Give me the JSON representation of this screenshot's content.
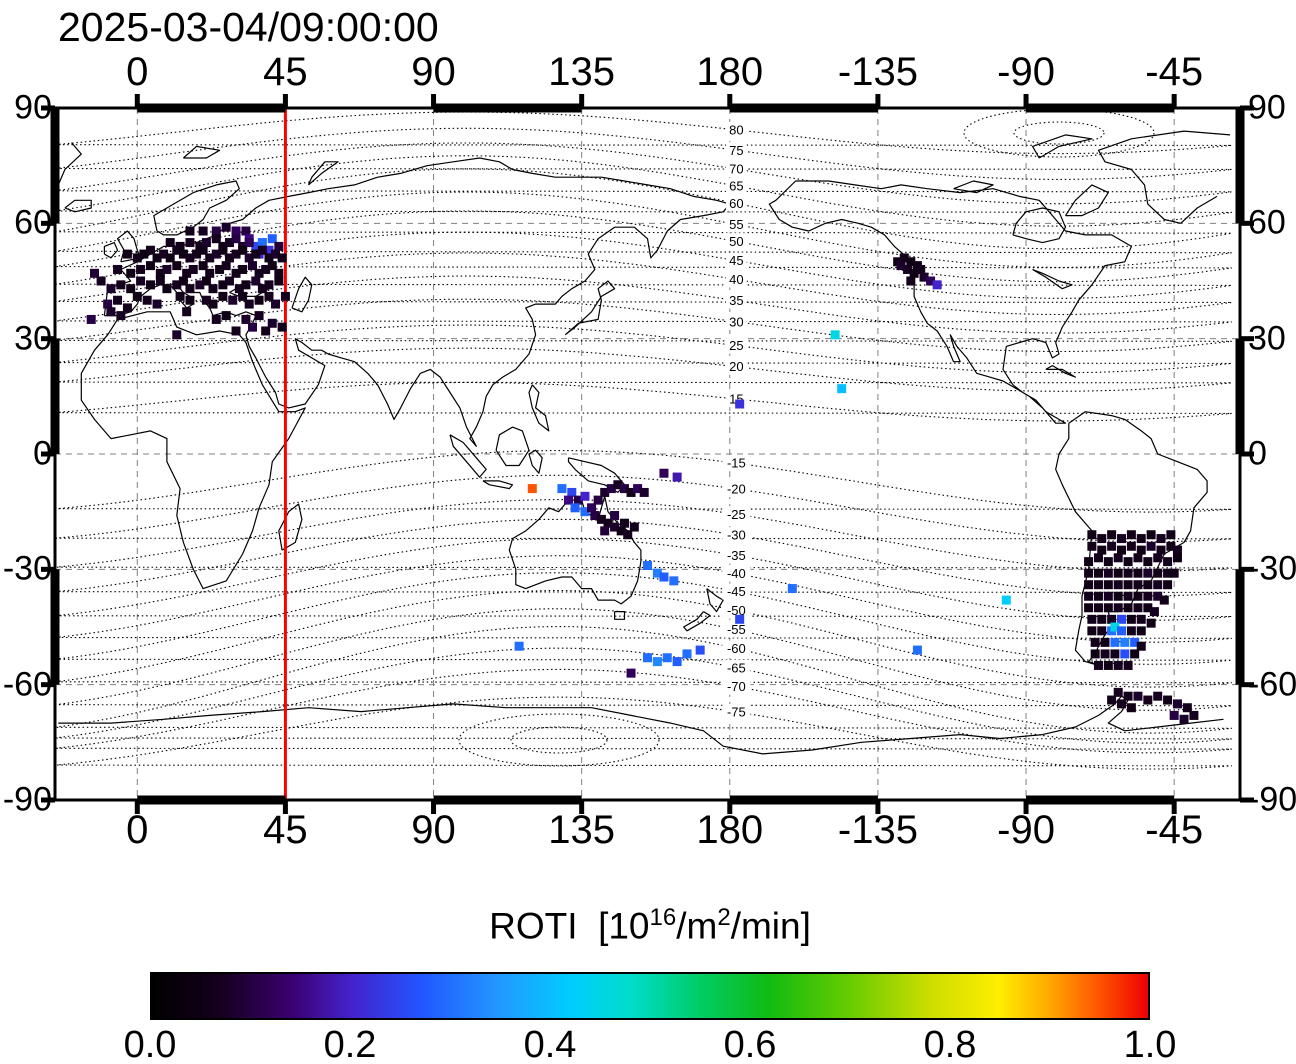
{
  "title": "2025-03-04/09:00:00",
  "axes": {
    "lon_ticks": [
      "0",
      "45",
      "90",
      "135",
      "180",
      "-135",
      "-90",
      "-45"
    ],
    "lat_ticks": [
      "90",
      "60",
      "30",
      "0",
      "-30",
      "-60",
      "-90"
    ]
  },
  "colorbar": {
    "title_prefix": "ROTI  [10",
    "title_sup1": "16",
    "title_mid": "/m",
    "title_sup2": "2",
    "title_suffix": "/min]",
    "tick_labels": [
      "0.0",
      "0.2",
      "0.4",
      "0.6",
      "0.8",
      "1.0"
    ],
    "stops": [
      [
        0,
        "#000000"
      ],
      [
        0.07,
        "#16001f"
      ],
      [
        0.14,
        "#3a0070"
      ],
      [
        0.2,
        "#4422cc"
      ],
      [
        0.27,
        "#2255ff"
      ],
      [
        0.35,
        "#2299ff"
      ],
      [
        0.42,
        "#00ccff"
      ],
      [
        0.48,
        "#00ddcc"
      ],
      [
        0.55,
        "#00cc66"
      ],
      [
        0.62,
        "#11bb11"
      ],
      [
        0.7,
        "#66cc00"
      ],
      [
        0.78,
        "#ccdd00"
      ],
      [
        0.85,
        "#ffee00"
      ],
      [
        0.9,
        "#ffaa00"
      ],
      [
        0.95,
        "#ff5500"
      ],
      [
        1,
        "#ee0000"
      ]
    ]
  },
  "chart_data": {
    "type": "scatter",
    "title": "2025-03-04/09:00:00",
    "projection": "equirectangular, lon -25..335, lat -90..90",
    "red_meridian_lon": 45,
    "grid": {
      "lon_step": 45,
      "lat_step": 30
    },
    "colorbar_range": [
      0,
      1
    ],
    "contour_labels_lon": 182,
    "contours": {
      "north": [
        [
          80,
          84.3
        ],
        [
          75,
          79.0
        ],
        [
          70,
          74.1
        ],
        [
          65,
          69.7
        ],
        [
          60,
          65.2
        ],
        [
          55,
          59.7
        ],
        [
          50,
          55.3
        ],
        [
          45,
          50.3
        ],
        [
          40,
          45.4
        ],
        [
          35,
          39.9
        ],
        [
          30,
          34.4
        ],
        [
          25,
          28.2
        ],
        [
          20,
          22.7
        ],
        [
          15,
          14.3
        ]
      ],
      "south": [
        [
          -15,
          -2.4
        ],
        [
          -20,
          -9.1
        ],
        [
          -25,
          -15.7
        ],
        [
          -30,
          -21.1
        ],
        [
          -35,
          -26.4
        ],
        [
          -40,
          -31.1
        ],
        [
          -45,
          -35.8
        ],
        [
          -50,
          -40.7
        ],
        [
          -55,
          -45.7
        ],
        [
          -60,
          -50.6
        ],
        [
          -65,
          -55.6
        ],
        [
          -70,
          -60.5
        ],
        [
          -75,
          -67.1
        ]
      ]
    },
    "points": [
      [
        24,
        58,
        0.1
      ],
      [
        27,
        59,
        0.08
      ],
      [
        30,
        58,
        0.12
      ],
      [
        33,
        58,
        0.1
      ],
      [
        20,
        58,
        0.07
      ],
      [
        16,
        58,
        0.06
      ],
      [
        36,
        54,
        0.25
      ],
      [
        38,
        55,
        0.3
      ],
      [
        40,
        53,
        0.22
      ],
      [
        41,
        56,
        0.28
      ],
      [
        37,
        52,
        0.2
      ],
      [
        34,
        56,
        0.15
      ],
      [
        10,
        55,
        0.06
      ],
      [
        13,
        54,
        0.05
      ],
      [
        16,
        55,
        0.07
      ],
      [
        19,
        54,
        0.05
      ],
      [
        21,
        55,
        0.08
      ],
      [
        24,
        56,
        0.06
      ],
      [
        26,
        54,
        0.05
      ],
      [
        28,
        55,
        0.07
      ],
      [
        30,
        56,
        0.1
      ],
      [
        32,
        54,
        0.08
      ],
      [
        34,
        55,
        0.12
      ],
      [
        43,
        54,
        0.09
      ],
      [
        -3,
        52,
        0.05
      ],
      [
        0,
        51,
        0.06
      ],
      [
        2,
        52,
        0.04
      ],
      [
        4,
        53,
        0.06
      ],
      [
        6,
        51,
        0.05
      ],
      [
        8,
        52,
        0.07
      ],
      [
        10,
        51,
        0.05
      ],
      [
        12,
        53,
        0.06
      ],
      [
        14,
        52,
        0.05
      ],
      [
        16,
        51,
        0.07
      ],
      [
        18,
        52,
        0.06
      ],
      [
        20,
        53,
        0.05
      ],
      [
        22,
        51,
        0.06
      ],
      [
        24,
        52,
        0.08
      ],
      [
        26,
        53,
        0.05
      ],
      [
        28,
        51,
        0.06
      ],
      [
        30,
        52,
        0.07
      ],
      [
        32,
        53,
        0.05
      ],
      [
        34,
        51,
        0.08
      ],
      [
        36,
        52,
        0.06
      ],
      [
        38,
        53,
        0.07
      ],
      [
        40,
        51,
        0.05
      ],
      [
        42,
        52,
        0.08
      ],
      [
        44,
        51,
        0.06
      ],
      [
        -6,
        48,
        0.07
      ],
      [
        -2,
        47,
        0.05
      ],
      [
        1,
        48,
        0.06
      ],
      [
        4,
        49,
        0.05
      ],
      [
        7,
        47,
        0.06
      ],
      [
        9,
        48,
        0.08
      ],
      [
        12,
        49,
        0.05
      ],
      [
        15,
        47,
        0.06
      ],
      [
        17,
        48,
        0.07
      ],
      [
        20,
        49,
        0.05
      ],
      [
        22,
        47,
        0.06
      ],
      [
        25,
        48,
        0.05
      ],
      [
        27,
        49,
        0.07
      ],
      [
        30,
        47,
        0.06
      ],
      [
        32,
        48,
        0.05
      ],
      [
        35,
        49,
        0.08
      ],
      [
        37,
        47,
        0.06
      ],
      [
        39,
        48,
        0.07
      ],
      [
        41,
        49,
        0.05
      ],
      [
        43,
        47,
        0.06
      ],
      [
        -13,
        47,
        0.09
      ],
      [
        -11,
        45,
        0.07
      ],
      [
        -8,
        43,
        0.08
      ],
      [
        -5,
        44,
        0.06
      ],
      [
        -2,
        43,
        0.05
      ],
      [
        1,
        45,
        0.07
      ],
      [
        4,
        44,
        0.05
      ],
      [
        7,
        45,
        0.06
      ],
      [
        9,
        43,
        0.05
      ],
      [
        12,
        44,
        0.07
      ],
      [
        14,
        45,
        0.05
      ],
      [
        16,
        43,
        0.06
      ],
      [
        19,
        44,
        0.08
      ],
      [
        21,
        45,
        0.05
      ],
      [
        23,
        43,
        0.06
      ],
      [
        26,
        44,
        0.05
      ],
      [
        28,
        45,
        0.07
      ],
      [
        31,
        43,
        0.06
      ],
      [
        33,
        44,
        0.05
      ],
      [
        36,
        45,
        0.08
      ],
      [
        38,
        43,
        0.06
      ],
      [
        40,
        44,
        0.07
      ],
      [
        43,
        45,
        0.05
      ],
      [
        45,
        41,
        0.07
      ],
      [
        -9,
        39,
        0.1
      ],
      [
        -6,
        40,
        0.07
      ],
      [
        -3,
        38,
        0.06
      ],
      [
        0,
        41,
        0.05
      ],
      [
        3,
        40,
        0.06
      ],
      [
        6,
        39,
        0.08
      ],
      [
        13,
        41,
        0.06
      ],
      [
        16,
        40,
        0.05
      ],
      [
        21,
        40,
        0.07
      ],
      [
        23,
        39,
        0.06
      ],
      [
        26,
        41,
        0.05
      ],
      [
        29,
        40,
        0.08
      ],
      [
        32,
        41,
        0.06
      ],
      [
        34,
        39,
        0.07
      ],
      [
        37,
        40,
        0.05
      ],
      [
        40,
        41,
        0.06
      ],
      [
        42,
        39,
        0.08
      ],
      [
        -14,
        35,
        0.1
      ],
      [
        -8,
        37,
        0.08
      ],
      [
        -5,
        36,
        0.07
      ],
      [
        12,
        31,
        0.08
      ],
      [
        15,
        37,
        0.06
      ],
      [
        24,
        35,
        0.07
      ],
      [
        27,
        36,
        0.05
      ],
      [
        30,
        32,
        0.06
      ],
      [
        33,
        35,
        0.08
      ],
      [
        35,
        33,
        0.1
      ],
      [
        37,
        36,
        0.07
      ],
      [
        39,
        32,
        0.06
      ],
      [
        41,
        34,
        0.08
      ],
      [
        44,
        33,
        0.06
      ],
      [
        -129,
        50,
        0.05
      ],
      [
        -127,
        51,
        0.06
      ],
      [
        -125,
        50,
        0.04
      ],
      [
        -123,
        49,
        0.06
      ],
      [
        -126,
        48,
        0.07
      ],
      [
        -124,
        47,
        0.05
      ],
      [
        -122,
        48,
        0.06
      ],
      [
        -121,
        46,
        0.08
      ],
      [
        -119,
        45,
        0.12
      ],
      [
        -117,
        44,
        0.2
      ],
      [
        -125,
        45,
        0.06
      ],
      [
        -128,
        49,
        0.08
      ],
      [
        -148,
        31,
        0.45
      ],
      [
        -146,
        17,
        0.4
      ],
      [
        -177,
        13,
        0.22
      ],
      [
        120,
        -9,
        0.95
      ],
      [
        129,
        -9,
        0.3
      ],
      [
        132,
        -10,
        0.25
      ],
      [
        131,
        -12,
        0.15
      ],
      [
        134,
        -12,
        0.1
      ],
      [
        136,
        -11,
        0.2
      ],
      [
        133,
        -14,
        0.28
      ],
      [
        136,
        -15,
        0.3
      ],
      [
        138,
        -14,
        0.12
      ],
      [
        140,
        -12,
        0.1
      ],
      [
        142,
        -10,
        0.08
      ],
      [
        144,
        -9,
        0.1
      ],
      [
        146,
        -8,
        0.07
      ],
      [
        148,
        -9,
        0.1
      ],
      [
        150,
        -10,
        0.06
      ],
      [
        152,
        -9,
        0.12
      ],
      [
        154,
        -10,
        0.08
      ],
      [
        139,
        -16,
        0.1
      ],
      [
        141,
        -17,
        0.07
      ],
      [
        143,
        -18,
        0.06
      ],
      [
        145,
        -19,
        0.08
      ],
      [
        147,
        -20,
        0.05
      ],
      [
        149,
        -21,
        0.07
      ],
      [
        151,
        -19,
        0.06
      ],
      [
        145,
        -16,
        0.1
      ],
      [
        148,
        -18,
        0.06
      ],
      [
        142,
        -20,
        0.09
      ],
      [
        160,
        -5,
        0.12
      ],
      [
        164,
        -6,
        0.18
      ],
      [
        155,
        -29,
        0.3
      ],
      [
        158,
        -31,
        0.32
      ],
      [
        160,
        -32,
        0.28
      ],
      [
        163,
        -33,
        0.3
      ],
      [
        -161,
        -35,
        0.3
      ],
      [
        -96,
        -38,
        0.42
      ],
      [
        116,
        -50,
        0.3
      ],
      [
        150,
        -57,
        0.12
      ],
      [
        155,
        -53,
        0.3
      ],
      [
        158,
        -54,
        0.33
      ],
      [
        161,
        -53,
        0.3
      ],
      [
        164,
        -54,
        0.28
      ],
      [
        167,
        -52,
        0.3
      ],
      [
        171,
        -51,
        0.26
      ],
      [
        -123,
        -51,
        0.3
      ],
      [
        -177,
        -43,
        0.25
      ],
      [
        -70,
        -21,
        0.05
      ],
      [
        -67,
        -22,
        0.06
      ],
      [
        -64,
        -21,
        0.05
      ],
      [
        -61,
        -22,
        0.07
      ],
      [
        -58,
        -21,
        0.05
      ],
      [
        -55,
        -22,
        0.06
      ],
      [
        -52,
        -21,
        0.05
      ],
      [
        -49,
        -22,
        0.07
      ],
      [
        -46,
        -21,
        0.06
      ],
      [
        -70,
        -24,
        0.06
      ],
      [
        -67,
        -25,
        0.05
      ],
      [
        -64,
        -24,
        0.07
      ],
      [
        -61,
        -25,
        0.05
      ],
      [
        -58,
        -24,
        0.06
      ],
      [
        -55,
        -25,
        0.05
      ],
      [
        -52,
        -24,
        0.08
      ],
      [
        -49,
        -25,
        0.06
      ],
      [
        -46,
        -24,
        0.05
      ],
      [
        -44,
        -25,
        0.07
      ],
      [
        -71,
        -28,
        0.05
      ],
      [
        -68,
        -27,
        0.06
      ],
      [
        -65,
        -28,
        0.05
      ],
      [
        -62,
        -27,
        0.07
      ],
      [
        -59,
        -28,
        0.05
      ],
      [
        -56,
        -27,
        0.06
      ],
      [
        -53,
        -28,
        0.05
      ],
      [
        -50,
        -27,
        0.07
      ],
      [
        -47,
        -28,
        0.06
      ],
      [
        -44,
        -27,
        0.05
      ],
      [
        -71,
        -31,
        0.06
      ],
      [
        -68,
        -31,
        0.05
      ],
      [
        -65,
        -31,
        0.07
      ],
      [
        -62,
        -31,
        0.05
      ],
      [
        -59,
        -31,
        0.06
      ],
      [
        -56,
        -31,
        0.05
      ],
      [
        -53,
        -31,
        0.08
      ],
      [
        -50,
        -31,
        0.05
      ],
      [
        -47,
        -31,
        0.06
      ],
      [
        -45,
        -31,
        0.05
      ],
      [
        -71,
        -34,
        0.05
      ],
      [
        -68,
        -34,
        0.06
      ],
      [
        -65,
        -34,
        0.05
      ],
      [
        -62,
        -34,
        0.07
      ],
      [
        -59,
        -34,
        0.05
      ],
      [
        -56,
        -34,
        0.06
      ],
      [
        -53,
        -34,
        0.05
      ],
      [
        -50,
        -34,
        0.07
      ],
      [
        -47,
        -34,
        0.05
      ],
      [
        -71,
        -37,
        0.06
      ],
      [
        -68,
        -37,
        0.05
      ],
      [
        -65,
        -37,
        0.07
      ],
      [
        -62,
        -37,
        0.05
      ],
      [
        -59,
        -37,
        0.06
      ],
      [
        -56,
        -37,
        0.05
      ],
      [
        -53,
        -37,
        0.06
      ],
      [
        -50,
        -37,
        0.08
      ],
      [
        -48,
        -38,
        0.06
      ],
      [
        -71,
        -40,
        0.05
      ],
      [
        -68,
        -40,
        0.06
      ],
      [
        -65,
        -40,
        0.05
      ],
      [
        -62,
        -40,
        0.07
      ],
      [
        -59,
        -40,
        0.05
      ],
      [
        -56,
        -40,
        0.06
      ],
      [
        -53,
        -40,
        0.05
      ],
      [
        -51,
        -41,
        0.07
      ],
      [
        -70,
        -43,
        0.06
      ],
      [
        -67,
        -43,
        0.05
      ],
      [
        -64,
        -43,
        0.07
      ],
      [
        -61,
        -43,
        0.25
      ],
      [
        -58,
        -43,
        0.05
      ],
      [
        -55,
        -43,
        0.06
      ],
      [
        -52,
        -44,
        0.05
      ],
      [
        -70,
        -46,
        0.05
      ],
      [
        -67,
        -46,
        0.06
      ],
      [
        -64,
        -46,
        0.3
      ],
      [
        -63,
        -45,
        0.45
      ],
      [
        -61,
        -46,
        0.28
      ],
      [
        -58,
        -46,
        0.06
      ],
      [
        -55,
        -46,
        0.05
      ],
      [
        -69,
        -49,
        0.06
      ],
      [
        -66,
        -49,
        0.05
      ],
      [
        -63,
        -49,
        0.3
      ],
      [
        -60,
        -49,
        0.32
      ],
      [
        -57,
        -49,
        0.28
      ],
      [
        -55,
        -50,
        0.06
      ],
      [
        -69,
        -52,
        0.05
      ],
      [
        -66,
        -52,
        0.07
      ],
      [
        -63,
        -52,
        0.06
      ],
      [
        -60,
        -52,
        0.26
      ],
      [
        -57,
        -52,
        0.05
      ],
      [
        -68,
        -55,
        0.06
      ],
      [
        -65,
        -55,
        0.05
      ],
      [
        -62,
        -55,
        0.07
      ],
      [
        -59,
        -55,
        0.06
      ],
      [
        -62,
        -62,
        0.07
      ],
      [
        -59,
        -63,
        0.06
      ],
      [
        -56,
        -63,
        0.08
      ],
      [
        -53,
        -64,
        0.06
      ],
      [
        -50,
        -63,
        0.07
      ],
      [
        -47,
        -64,
        0.05
      ],
      [
        -44,
        -65,
        0.08
      ],
      [
        -41,
        -66,
        0.06
      ],
      [
        -64,
        -64,
        0.06
      ],
      [
        -61,
        -65,
        0.07
      ],
      [
        -58,
        -66,
        0.05
      ],
      [
        -45,
        -68,
        0.1
      ],
      [
        -42,
        -69,
        0.08
      ],
      [
        -39,
        -68,
        0.07
      ]
    ]
  }
}
